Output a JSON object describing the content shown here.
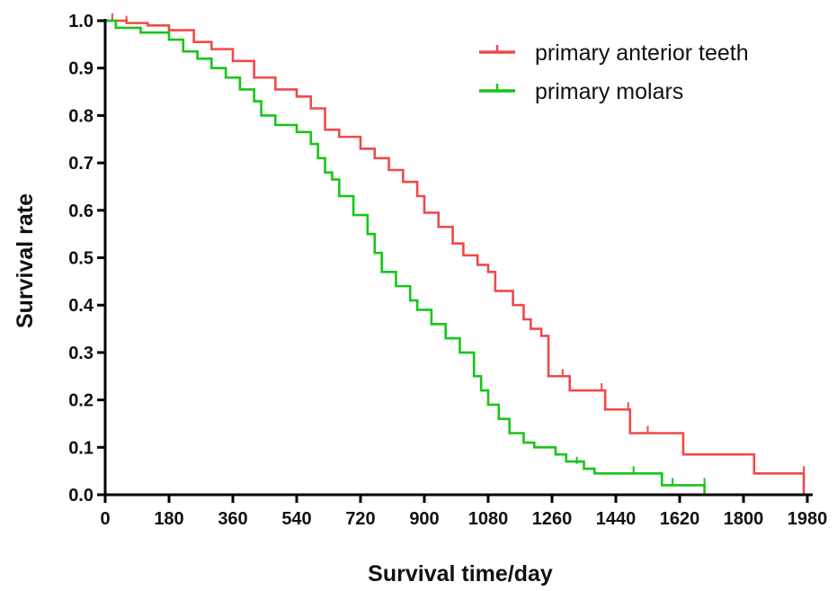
{
  "chart_data": {
    "type": "line",
    "step": true,
    "xlabel": "Survival time/day",
    "ylabel": "Survival rate",
    "xlim": [
      0,
      1980
    ],
    "ylim": [
      0.0,
      1.0
    ],
    "x_ticks": [
      "0",
      "180",
      "360",
      "540",
      "720",
      "900",
      "1080",
      "1260",
      "1440",
      "1620",
      "1800",
      "1980"
    ],
    "y_ticks": [
      "0.0",
      "0.1",
      "0.2",
      "0.3",
      "0.4",
      "0.5",
      "0.6",
      "0.7",
      "0.8",
      "0.9",
      "1.0"
    ],
    "grid": false,
    "legend_position": "top-right",
    "series": [
      {
        "name": "primary anterior teeth",
        "color": "#f0484a",
        "points": [
          [
            0,
            1.0
          ],
          [
            20,
            1.0
          ],
          [
            60,
            0.995
          ],
          [
            120,
            0.99
          ],
          [
            180,
            0.98
          ],
          [
            250,
            0.955
          ],
          [
            300,
            0.94
          ],
          [
            360,
            0.915
          ],
          [
            420,
            0.88
          ],
          [
            480,
            0.855
          ],
          [
            540,
            0.84
          ],
          [
            580,
            0.815
          ],
          [
            620,
            0.77
          ],
          [
            660,
            0.755
          ],
          [
            720,
            0.73
          ],
          [
            760,
            0.71
          ],
          [
            800,
            0.685
          ],
          [
            840,
            0.66
          ],
          [
            880,
            0.63
          ],
          [
            900,
            0.595
          ],
          [
            940,
            0.565
          ],
          [
            980,
            0.53
          ],
          [
            1010,
            0.505
          ],
          [
            1050,
            0.485
          ],
          [
            1080,
            0.47
          ],
          [
            1100,
            0.43
          ],
          [
            1150,
            0.4
          ],
          [
            1180,
            0.37
          ],
          [
            1200,
            0.35
          ],
          [
            1230,
            0.335
          ],
          [
            1250,
            0.25
          ],
          [
            1300,
            0.25
          ],
          [
            1310,
            0.22
          ],
          [
            1400,
            0.22
          ],
          [
            1410,
            0.18
          ],
          [
            1470,
            0.18
          ],
          [
            1480,
            0.13
          ],
          [
            1620,
            0.13
          ],
          [
            1630,
            0.085
          ],
          [
            1820,
            0.085
          ],
          [
            1830,
            0.045
          ],
          [
            1970,
            0.045
          ],
          [
            1970,
            0.0
          ]
        ],
        "censored_marks": [
          [
            20,
            1.0
          ],
          [
            60,
            0.995
          ],
          [
            1290,
            0.25
          ],
          [
            1400,
            0.22
          ],
          [
            1475,
            0.18
          ],
          [
            1530,
            0.13
          ],
          [
            1970,
            0.045
          ]
        ]
      },
      {
        "name": "primary molars",
        "color": "#17c617",
        "points": [
          [
            0,
            1.0
          ],
          [
            10,
            1.0
          ],
          [
            30,
            0.985
          ],
          [
            90,
            0.985
          ],
          [
            100,
            0.975
          ],
          [
            180,
            0.96
          ],
          [
            220,
            0.935
          ],
          [
            260,
            0.92
          ],
          [
            300,
            0.9
          ],
          [
            340,
            0.88
          ],
          [
            380,
            0.855
          ],
          [
            420,
            0.83
          ],
          [
            440,
            0.8
          ],
          [
            480,
            0.78
          ],
          [
            540,
            0.765
          ],
          [
            580,
            0.74
          ],
          [
            600,
            0.71
          ],
          [
            620,
            0.68
          ],
          [
            640,
            0.665
          ],
          [
            660,
            0.63
          ],
          [
            700,
            0.59
          ],
          [
            740,
            0.55
          ],
          [
            760,
            0.51
          ],
          [
            780,
            0.47
          ],
          [
            820,
            0.44
          ],
          [
            860,
            0.41
          ],
          [
            880,
            0.39
          ],
          [
            920,
            0.36
          ],
          [
            960,
            0.33
          ],
          [
            1000,
            0.3
          ],
          [
            1040,
            0.25
          ],
          [
            1060,
            0.22
          ],
          [
            1080,
            0.19
          ],
          [
            1110,
            0.16
          ],
          [
            1140,
            0.13
          ],
          [
            1180,
            0.11
          ],
          [
            1210,
            0.1
          ],
          [
            1270,
            0.085
          ],
          [
            1300,
            0.07
          ],
          [
            1350,
            0.055
          ],
          [
            1380,
            0.045
          ],
          [
            1460,
            0.045
          ],
          [
            1500,
            0.045
          ],
          [
            1570,
            0.045
          ],
          [
            1570,
            0.02
          ],
          [
            1690,
            0.02
          ],
          [
            1690,
            0.0
          ]
        ],
        "censored_marks": [
          [
            30,
            0.985
          ],
          [
            1330,
            0.065
          ],
          [
            1490,
            0.045
          ],
          [
            1600,
            0.02
          ],
          [
            1690,
            0.02
          ]
        ]
      }
    ]
  }
}
